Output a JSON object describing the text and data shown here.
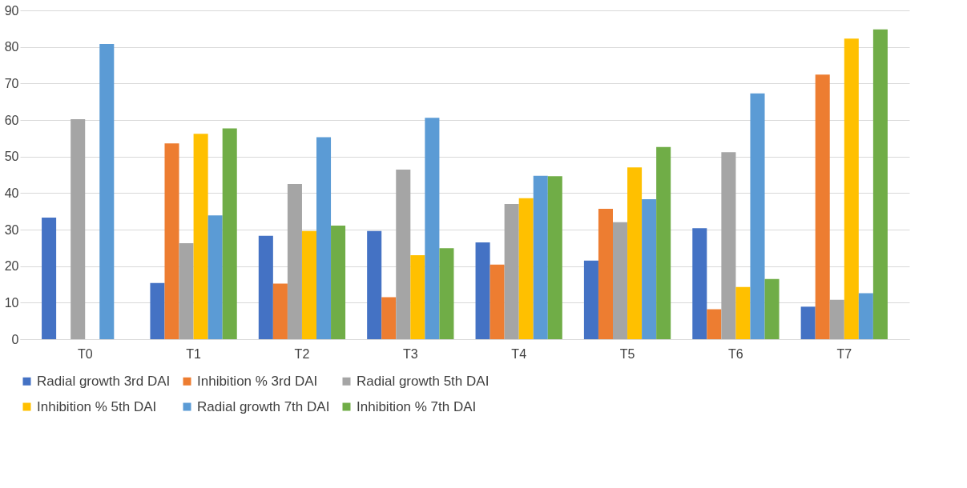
{
  "chart_data": {
    "type": "bar",
    "categories": [
      "T0",
      "T1",
      "T2",
      "T3",
      "T4",
      "T5",
      "T6",
      "T7"
    ],
    "series": [
      {
        "name": "Radial growth 3rd DAI",
        "color": "#4472c4",
        "values": [
          33.3,
          15.4,
          28.3,
          29.6,
          26.5,
          21.5,
          30.4,
          8.9
        ]
      },
      {
        "name": "Inhibition % 3rd DAI",
        "color": "#ed7d31",
        "values": [
          0,
          53.6,
          15.2,
          11.5,
          20.4,
          35.7,
          8.2,
          72.4
        ]
      },
      {
        "name": "Radial growth 5th DAI",
        "color": "#a5a5a5",
        "values": [
          60.2,
          26.3,
          42.5,
          46.4,
          37.0,
          32.0,
          51.2,
          10.8
        ]
      },
      {
        "name": "Inhibition % 5th DAI",
        "color": "#ffc000",
        "values": [
          0,
          56.2,
          29.6,
          23.0,
          38.6,
          47.0,
          14.3,
          82.3
        ]
      },
      {
        "name": "Radial growth 7th DAI",
        "color": "#5b9bd5",
        "values": [
          80.8,
          33.9,
          55.3,
          60.6,
          44.7,
          38.3,
          67.3,
          12.6
        ]
      },
      {
        "name": "Inhibition % 7th DAI",
        "color": "#70ad47",
        "values": [
          0,
          57.7,
          31.1,
          24.9,
          44.6,
          52.6,
          16.5,
          84.8
        ]
      }
    ],
    "ylim": [
      0,
      90
    ],
    "yticks": [
      0,
      10,
      20,
      30,
      40,
      50,
      60,
      70,
      80,
      90
    ],
    "grid": "y",
    "legend": "bottom"
  }
}
